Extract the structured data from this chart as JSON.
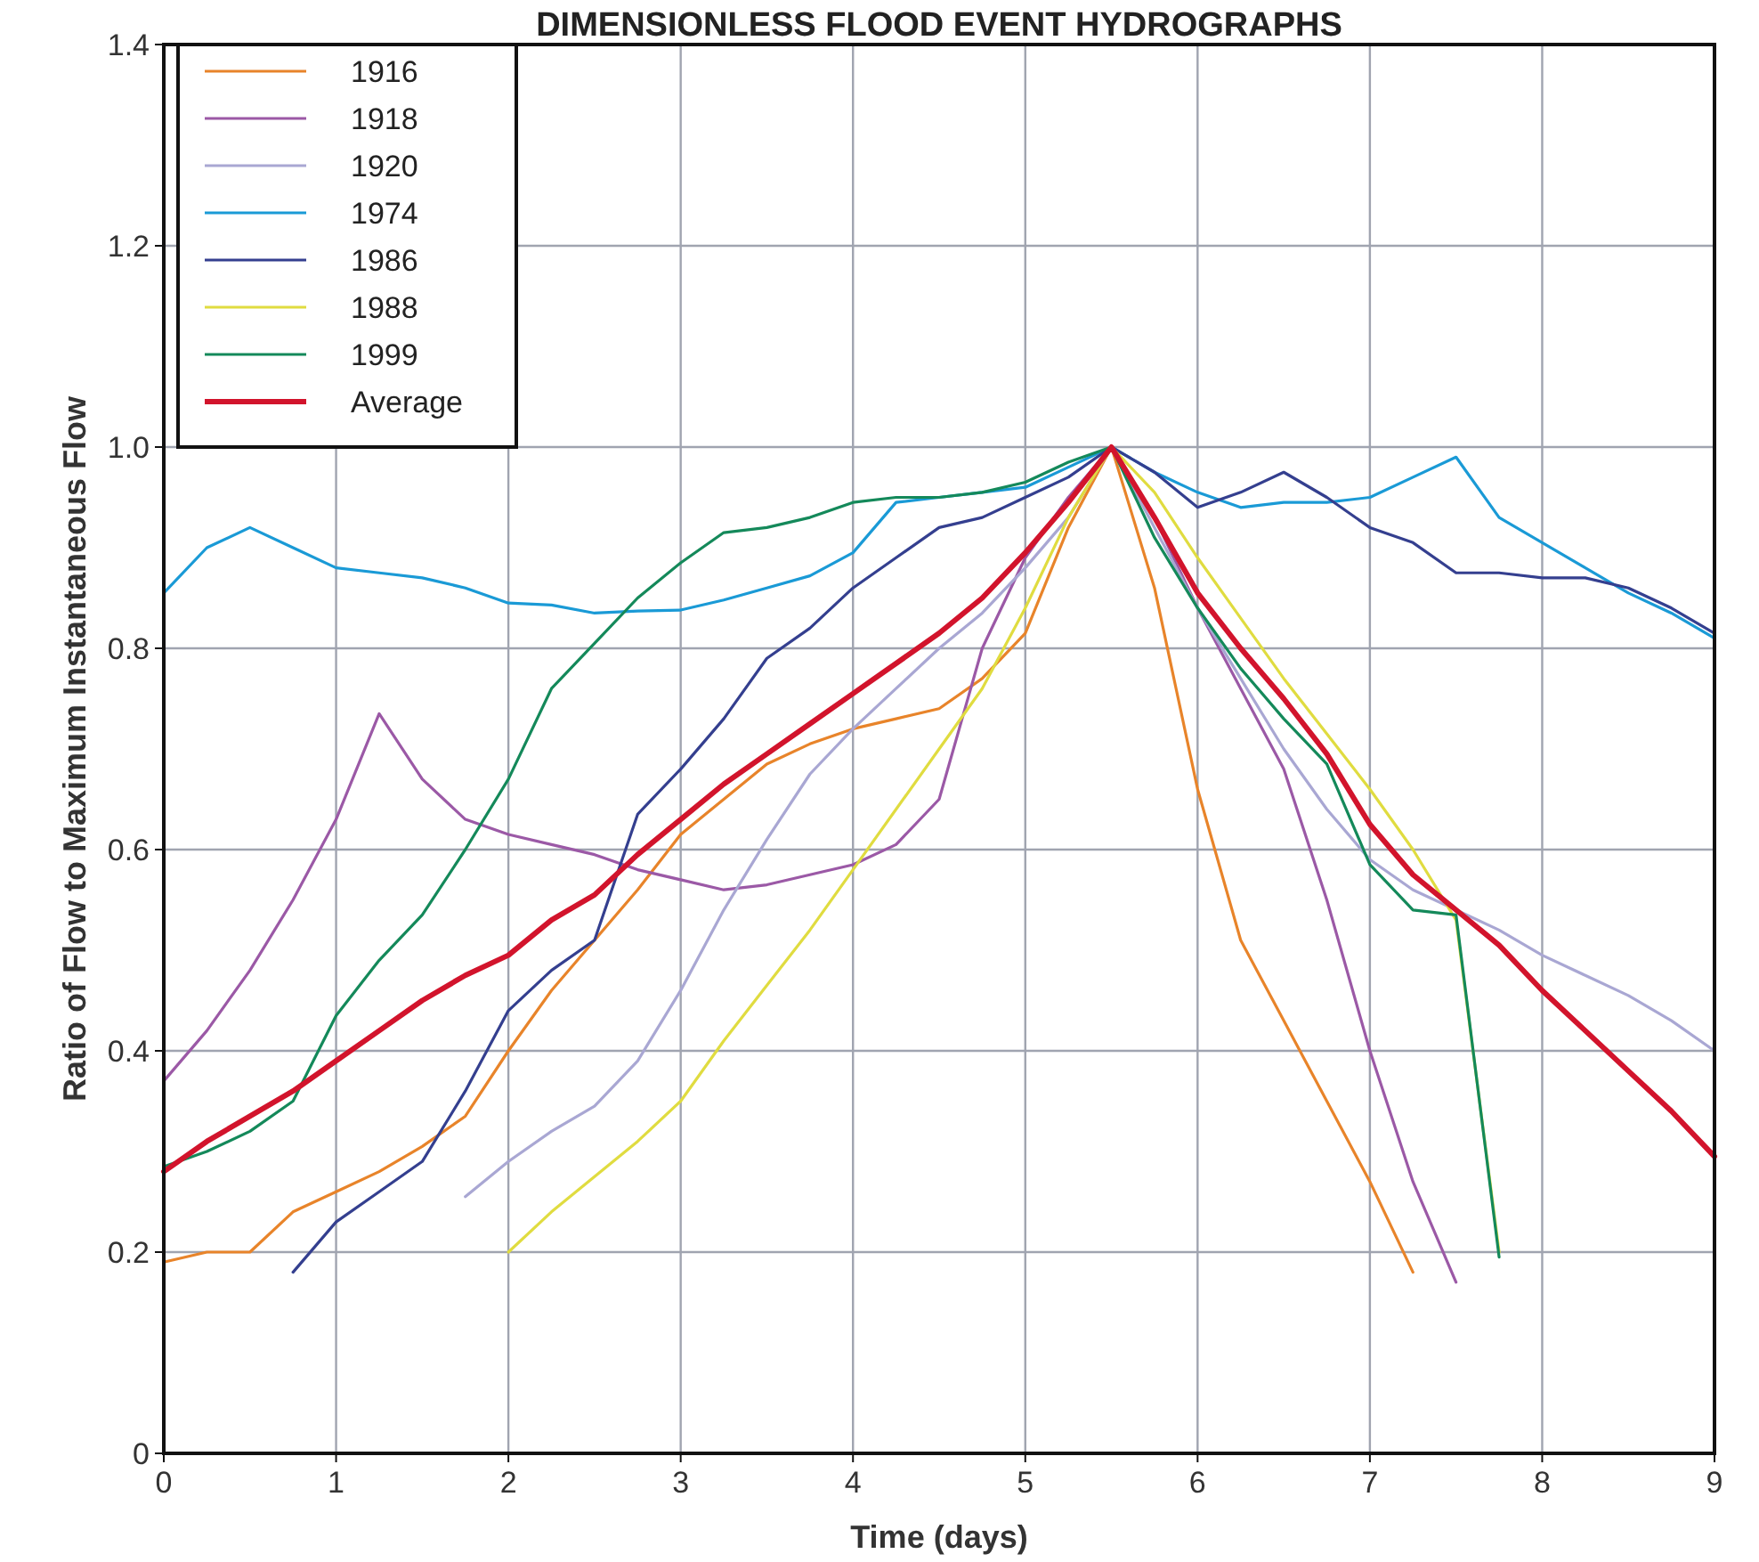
{
  "chart_data": {
    "type": "line",
    "title": "DIMENSIONLESS FLOOD EVENT HYDROGRAPHS",
    "xlabel": "Time (days)",
    "ylabel": "Ratio of Flow to Maximum Instantaneous Flow",
    "xlim": [
      0,
      9
    ],
    "xticks": [
      0,
      1,
      2,
      3,
      4,
      5,
      6,
      7,
      8,
      9
    ],
    "ylim": [
      0,
      1.4
    ],
    "yticks": [
      0,
      0.2,
      0.4,
      0.6,
      0.8,
      {
        "value": 1,
        "label": "1.0"
      },
      1.2,
      1.4
    ],
    "grid": true,
    "legend": "top left",
    "line_style": "solid",
    "marker": "none",
    "series": [
      {
        "name": "1916",
        "color": "#e8842a",
        "x": [
          0,
          0.25,
          0.5,
          0.75,
          1,
          1.25,
          1.5,
          1.75,
          2,
          2.25,
          2.5,
          2.75,
          3,
          3.25,
          3.5,
          3.75,
          4,
          4.25,
          4.5,
          4.75,
          5,
          5.25,
          5.5,
          5.75,
          6,
          6.25,
          6.5,
          6.75,
          7,
          7.25
        ],
        "values": [
          0.19,
          0.2,
          0.2,
          0.24,
          0.26,
          0.28,
          0.305,
          0.335,
          0.4,
          0.46,
          0.51,
          0.56,
          0.615,
          0.65,
          0.685,
          0.705,
          0.72,
          0.73,
          0.74,
          0.77,
          0.815,
          0.92,
          1,
          0.86,
          0.66,
          0.51,
          0.43,
          0.35,
          0.27,
          0.18
        ]
      },
      {
        "name": "1918",
        "color": "#9b59a6",
        "x": [
          0,
          0.25,
          0.5,
          0.75,
          1,
          1.25,
          1.5,
          1.75,
          2,
          2.25,
          2.5,
          2.75,
          3,
          3.25,
          3.5,
          3.75,
          4,
          4.25,
          4.5,
          4.75,
          5,
          5.25,
          5.5,
          5.75,
          6,
          6.25,
          6.5,
          6.75,
          7,
          7.25,
          7.5
        ],
        "values": [
          0.37,
          0.42,
          0.48,
          0.55,
          0.63,
          0.735,
          0.67,
          0.63,
          0.615,
          0.605,
          0.595,
          0.58,
          0.57,
          0.56,
          0.565,
          0.575,
          0.585,
          0.605,
          0.65,
          0.8,
          0.89,
          0.95,
          1,
          0.93,
          0.84,
          0.76,
          0.68,
          0.55,
          0.4,
          0.27,
          0.17
        ]
      },
      {
        "name": "1920",
        "color": "#a9a7d3",
        "x": [
          1.75,
          2,
          2.25,
          2.5,
          2.75,
          3,
          3.25,
          3.5,
          3.75,
          4,
          4.25,
          4.5,
          4.75,
          5,
          5.25,
          5.5,
          5.75,
          6,
          6.25,
          6.5,
          6.75,
          7,
          7.25,
          7.5,
          7.75,
          8,
          8.25,
          8.5,
          8.75,
          9
        ],
        "values": [
          0.255,
          0.29,
          0.32,
          0.345,
          0.39,
          0.46,
          0.54,
          0.61,
          0.675,
          0.72,
          0.76,
          0.8,
          0.835,
          0.88,
          0.93,
          1,
          0.92,
          0.84,
          0.77,
          0.7,
          0.64,
          0.59,
          0.56,
          0.54,
          0.52,
          0.495,
          0.475,
          0.455,
          0.43,
          0.4
        ]
      },
      {
        "name": "1974",
        "color": "#1a9ad6",
        "x": [
          0,
          0.25,
          0.5,
          0.75,
          1,
          1.25,
          1.5,
          1.75,
          2,
          2.25,
          2.5,
          2.75,
          3,
          3.25,
          3.5,
          3.75,
          4,
          4.25,
          4.5,
          4.75,
          5,
          5.25,
          5.5,
          5.75,
          6,
          6.25,
          6.5,
          6.75,
          7,
          7.25,
          7.5,
          7.75,
          8,
          8.25,
          8.5,
          8.75,
          9
        ],
        "values": [
          0.855,
          0.9,
          0.92,
          0.9,
          0.88,
          0.875,
          0.87,
          0.86,
          0.845,
          0.843,
          0.835,
          0.837,
          0.838,
          0.848,
          0.86,
          0.872,
          0.895,
          0.945,
          0.95,
          0.955,
          0.96,
          0.98,
          1,
          0.975,
          0.955,
          0.94,
          0.945,
          0.945,
          0.95,
          0.97,
          0.99,
          0.93,
          0.905,
          0.88,
          0.855,
          0.835,
          0.81
        ]
      },
      {
        "name": "1986",
        "color": "#343f8f",
        "x": [
          0.75,
          1,
          1.25,
          1.5,
          1.75,
          2,
          2.25,
          2.5,
          2.75,
          3,
          3.25,
          3.5,
          3.75,
          4,
          4.25,
          4.5,
          4.75,
          5,
          5.25,
          5.5,
          5.75,
          6,
          6.25,
          6.5,
          6.75,
          7,
          7.25,
          7.5,
          7.75,
          8,
          8.25,
          8.5,
          8.75,
          9
        ],
        "values": [
          0.18,
          0.23,
          0.26,
          0.29,
          0.36,
          0.44,
          0.48,
          0.51,
          0.635,
          0.68,
          0.73,
          0.79,
          0.82,
          0.86,
          0.89,
          0.92,
          0.93,
          0.95,
          0.97,
          1,
          0.975,
          0.94,
          0.955,
          0.975,
          0.95,
          0.92,
          0.905,
          0.875,
          0.875,
          0.87,
          0.87,
          0.86,
          0.84,
          0.815
        ]
      },
      {
        "name": "1988",
        "color": "#e0dc40",
        "x": [
          2,
          2.25,
          2.5,
          2.75,
          3,
          3.25,
          3.5,
          3.75,
          4,
          4.25,
          4.5,
          4.75,
          5,
          5.25,
          5.5,
          5.75,
          6,
          6.25,
          6.5,
          6.75,
          7,
          7.25,
          7.5,
          7.75
        ],
        "values": [
          0.2,
          0.24,
          0.275,
          0.31,
          0.35,
          0.41,
          0.465,
          0.52,
          0.58,
          0.64,
          0.7,
          0.76,
          0.84,
          0.93,
          1,
          0.955,
          0.89,
          0.83,
          0.77,
          0.715,
          0.66,
          0.6,
          0.53,
          0.2
        ]
      },
      {
        "name": "1999",
        "color": "#14895a",
        "x": [
          0,
          0.25,
          0.5,
          0.75,
          1,
          1.25,
          1.5,
          1.75,
          2,
          2.25,
          2.5,
          2.75,
          3,
          3.25,
          3.5,
          3.75,
          4,
          4.25,
          4.5,
          4.75,
          5,
          5.25,
          5.5,
          5.75,
          6,
          6.25,
          6.5,
          6.75,
          7,
          7.25,
          7.5,
          7.75
        ],
        "values": [
          0.285,
          0.3,
          0.32,
          0.35,
          0.435,
          0.49,
          0.535,
          0.6,
          0.67,
          0.76,
          0.805,
          0.85,
          0.885,
          0.915,
          0.92,
          0.93,
          0.945,
          0.95,
          0.95,
          0.955,
          0.965,
          0.985,
          1,
          0.91,
          0.84,
          0.78,
          0.73,
          0.685,
          0.585,
          0.54,
          0.535,
          0.195
        ]
      },
      {
        "name": "Average",
        "color": "#d2142c",
        "x": [
          0,
          0.25,
          0.5,
          0.75,
          1,
          1.25,
          1.5,
          1.75,
          2,
          2.25,
          2.5,
          2.75,
          3,
          3.25,
          3.5,
          3.75,
          4,
          4.25,
          4.5,
          4.75,
          5,
          5.25,
          5.5,
          5.75,
          6,
          6.25,
          6.5,
          6.75,
          7,
          7.25,
          7.5,
          7.75,
          8,
          8.25,
          8.5,
          8.75,
          9
        ],
        "values": [
          0.28,
          0.31,
          0.335,
          0.36,
          0.39,
          0.42,
          0.45,
          0.475,
          0.495,
          0.53,
          0.555,
          0.595,
          0.63,
          0.665,
          0.695,
          0.725,
          0.755,
          0.785,
          0.815,
          0.85,
          0.895,
          0.945,
          1,
          0.93,
          0.855,
          0.8,
          0.75,
          0.695,
          0.625,
          0.575,
          0.54,
          0.505,
          0.46,
          0.42,
          0.38,
          0.34,
          0.295
        ]
      }
    ]
  }
}
